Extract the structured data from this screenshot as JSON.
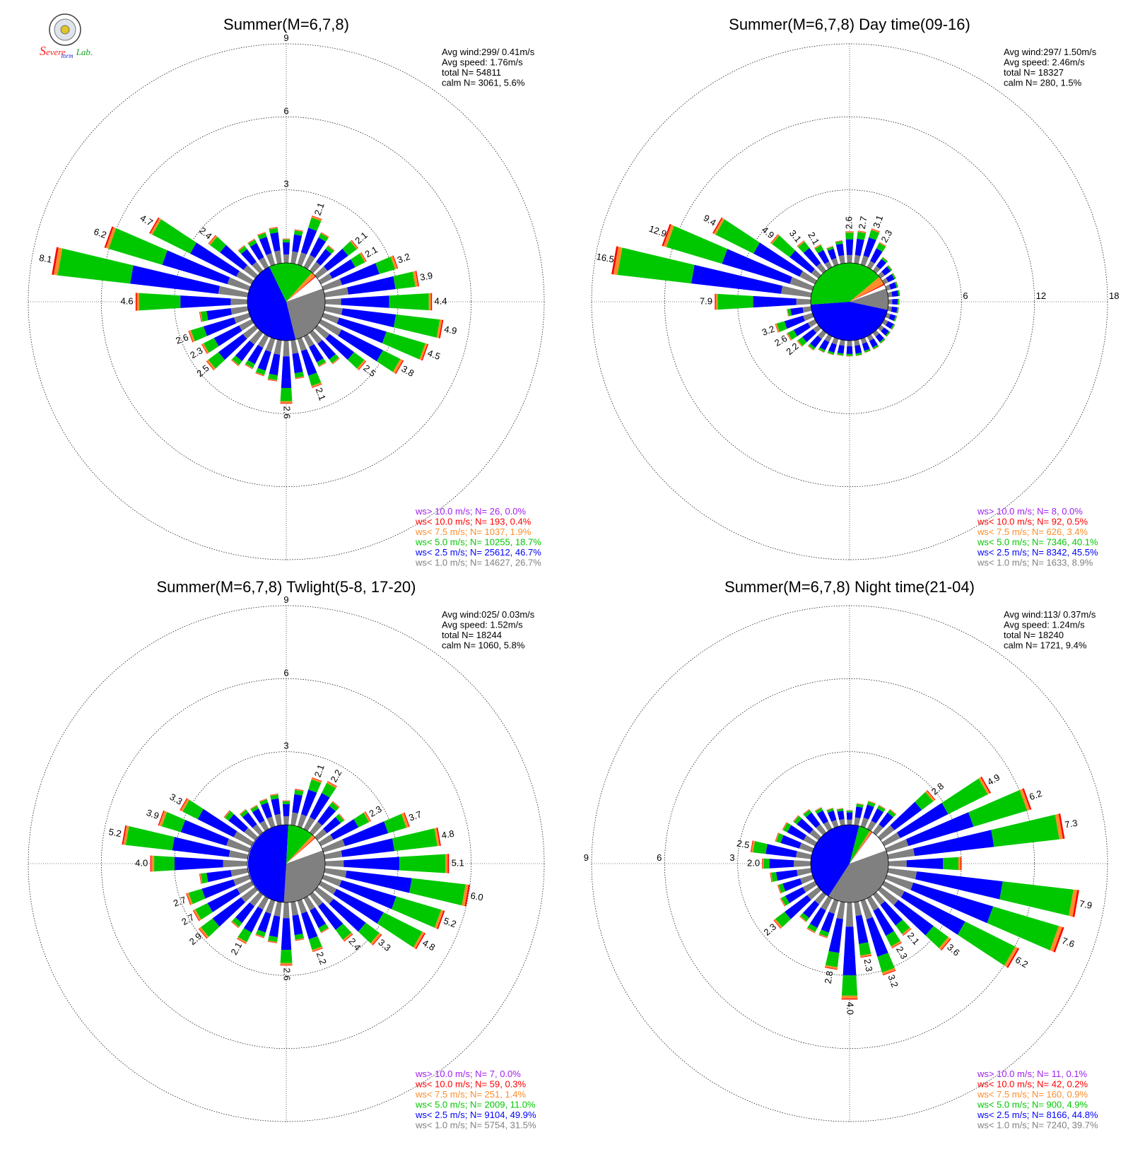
{
  "logo": {
    "text_parts": [
      {
        "text": "S",
        "color": "#ff2020"
      },
      {
        "text": "evere",
        "color": "#ff2020"
      },
      {
        "text": "torm",
        "color": "#1a2bd6"
      },
      {
        "text": "Lab.",
        "color": "#14a31e"
      }
    ]
  },
  "colors": {
    "ws_gt_10": "#a020f0",
    "ws_lt_10": "#ff0000",
    "ws_lt_7_5": "#ff8c2a",
    "ws_lt_5": "#00c800",
    "ws_lt_2_5": "#0000ff",
    "ws_lt_1": "#808080"
  },
  "chart_data": [
    {
      "type": "wind-rose",
      "title": "Summer(M=6,7,8)",
      "ring_labels": [
        "3",
        "6",
        "9"
      ],
      "ring_label_position": "north",
      "avg_wind": "Avg wind:299/ 0.41m/s",
      "avg_speed": "Avg speed: 1.76m/s",
      "total": "total N=      54811",
      "calm": "calm N=   3061,   5.6%",
      "legend": [
        "ws> 10.0 m/s; N=    26,  0.0%",
        "ws< 10.0 m/s; N=   193,  0.4%",
        "ws<  7.5 m/s; N=  1037,  1.9%",
        "ws<  5.0 m/s; N= 10255, 18.7%",
        "ws<  2.5 m/s; N= 25612, 46.7%",
        "ws<  1.0 m/s; N= 14627, 26.7%"
      ],
      "calm_pie": [
        0.267,
        0.467,
        0.187,
        0.019,
        0.004,
        0.0
      ],
      "bars": [
        {
          "dir": 0,
          "total": 1.0
        },
        {
          "dir": 10,
          "total": 1.4
        },
        {
          "dir": 20,
          "total": 2.1,
          "label": "2.1"
        },
        {
          "dir": 30,
          "total": 1.6
        },
        {
          "dir": 40,
          "total": 1.3
        },
        {
          "dir": 50,
          "total": 2.1,
          "label": "2.1"
        },
        {
          "dir": 60,
          "total": 2.1,
          "label": "2.1"
        },
        {
          "dir": 70,
          "total": 3.2,
          "label": "3.2"
        },
        {
          "dir": 80,
          "total": 3.9,
          "label": "3.9"
        },
        {
          "dir": 90,
          "total": 4.4,
          "label": "4.4"
        },
        {
          "dir": 100,
          "total": 4.9,
          "label": "4.9"
        },
        {
          "dir": 110,
          "total": 4.5,
          "label": "4.5"
        },
        {
          "dir": 120,
          "total": 3.8,
          "label": "3.8"
        },
        {
          "dir": 130,
          "total": 2.5,
          "label": "2.5"
        },
        {
          "dir": 140,
          "total": 1.6
        },
        {
          "dir": 150,
          "total": 1.4
        },
        {
          "dir": 160,
          "total": 2.1,
          "label": "2.1"
        },
        {
          "dir": 170,
          "total": 1.6
        },
        {
          "dir": 180,
          "total": 2.6,
          "label": "2.6"
        },
        {
          "dir": 190,
          "total": 1.7
        },
        {
          "dir": 200,
          "total": 1.6
        },
        {
          "dir": 210,
          "total": 1.5
        },
        {
          "dir": 220,
          "total": 1.7
        },
        {
          "dir": 230,
          "total": 2.5,
          "label": "2.5"
        },
        {
          "dir": 240,
          "total": 2.3,
          "label": "2.3"
        },
        {
          "dir": 250,
          "total": 2.6,
          "label": "2.6"
        },
        {
          "dir": 260,
          "total": 2.0
        },
        {
          "dir": 270,
          "total": 4.6,
          "label": "4.6"
        },
        {
          "dir": 280,
          "total": 8.1,
          "label": "8.1"
        },
        {
          "dir": 290,
          "total": 6.2,
          "label": "6.2"
        },
        {
          "dir": 300,
          "total": 4.7,
          "label": "4.7"
        },
        {
          "dir": 310,
          "total": 2.4,
          "label": "2.4"
        },
        {
          "dir": 320,
          "total": 1.3
        },
        {
          "dir": 330,
          "total": 1.3
        },
        {
          "dir": 340,
          "total": 1.4
        },
        {
          "dir": 350,
          "total": 1.5
        }
      ]
    },
    {
      "type": "wind-rose",
      "title": "Summer(M=6,7,8) Day time(09-16)",
      "ring_labels": [
        "6",
        "12",
        "18"
      ],
      "ring_label_position": "east",
      "avg_wind": "Avg wind:297/ 1.50m/s",
      "avg_speed": "Avg speed: 2.46m/s",
      "total": "total N=      18327",
      "calm": "calm N=    280,   1.5%",
      "legend": [
        "ws> 10.0 m/s; N=     8,  0.0%",
        "ws< 10.0 m/s; N=    92,  0.5%",
        "ws<  7.5 m/s; N=   626,  3.4%",
        "ws<  5.0 m/s; N=  7346, 40.1%",
        "ws<  2.5 m/s; N=  8342, 45.5%",
        "ws<  1.0 m/s; N=  1633,  8.9%"
      ],
      "calm_pie": [
        0.089,
        0.455,
        0.401,
        0.034,
        0.005,
        0.0
      ],
      "bars": [
        {
          "dir": 0,
          "total": 2.6,
          "label": "2.6"
        },
        {
          "dir": 10,
          "total": 2.7,
          "label": "2.7"
        },
        {
          "dir": 20,
          "total": 3.1,
          "label": "3.1"
        },
        {
          "dir": 30,
          "total": 2.3,
          "label": "2.3"
        },
        {
          "dir": 40,
          "total": 1.4
        },
        {
          "dir": 50,
          "total": 1.2
        },
        {
          "dir": 60,
          "total": 1.1
        },
        {
          "dir": 70,
          "total": 1.0
        },
        {
          "dir": 80,
          "total": 1.0
        },
        {
          "dir": 90,
          "total": 0.9
        },
        {
          "dir": 100,
          "total": 0.9
        },
        {
          "dir": 110,
          "total": 0.9
        },
        {
          "dir": 120,
          "total": 1.0
        },
        {
          "dir": 130,
          "total": 1.0
        },
        {
          "dir": 140,
          "total": 1.1
        },
        {
          "dir": 150,
          "total": 1.2
        },
        {
          "dir": 160,
          "total": 1.2
        },
        {
          "dir": 170,
          "total": 1.3
        },
        {
          "dir": 180,
          "total": 1.3
        },
        {
          "dir": 190,
          "total": 1.3
        },
        {
          "dir": 200,
          "total": 1.4
        },
        {
          "dir": 210,
          "total": 1.5
        },
        {
          "dir": 220,
          "total": 1.8
        },
        {
          "dir": 230,
          "total": 2.2,
          "label": "2.2"
        },
        {
          "dir": 240,
          "total": 2.6,
          "label": "2.6"
        },
        {
          "dir": 250,
          "total": 3.2,
          "label": "3.2"
        },
        {
          "dir": 260,
          "total": 2.0
        },
        {
          "dir": 270,
          "total": 7.9,
          "label": "7.9"
        },
        {
          "dir": 280,
          "total": 16.5,
          "label": "16.5"
        },
        {
          "dir": 290,
          "total": 12.9,
          "label": "12.9"
        },
        {
          "dir": 300,
          "total": 9.4,
          "label": "9.4"
        },
        {
          "dir": 310,
          "total": 4.9,
          "label": "4.9"
        },
        {
          "dir": 320,
          "total": 3.1,
          "label": "3.1"
        },
        {
          "dir": 330,
          "total": 2.1,
          "label": "2.1"
        },
        {
          "dir": 340,
          "total": 1.6
        },
        {
          "dir": 350,
          "total": 1.9
        }
      ]
    },
    {
      "type": "wind-rose",
      "title": "Summer(M=6,7,8) Twlight(5-8, 17-20)",
      "ring_labels": [
        "3",
        "6",
        "9"
      ],
      "ring_label_position": "north",
      "avg_wind": "Avg wind:025/ 0.03m/s",
      "avg_speed": "Avg speed: 1.52m/s",
      "total": "total N=      18244",
      "calm": "calm N=   1060,   5.8%",
      "legend": [
        "ws> 10.0 m/s; N=     7,  0.0%",
        "ws< 10.0 m/s; N=    59,  0.3%",
        "ws<  7.5 m/s; N=   251,  1.4%",
        "ws<  5.0 m/s; N=  2009, 11.0%",
        "ws<  2.5 m/s; N=  9104, 49.9%",
        "ws<  1.0 m/s; N=  5754, 31.5%"
      ],
      "calm_pie": [
        0.315,
        0.499,
        0.11,
        0.014,
        0.003,
        0.0
      ],
      "bars": [
        {
          "dir": 0,
          "total": 1.0
        },
        {
          "dir": 10,
          "total": 1.5
        },
        {
          "dir": 20,
          "total": 2.1,
          "label": "2.1"
        },
        {
          "dir": 30,
          "total": 2.2,
          "label": "2.2"
        },
        {
          "dir": 40,
          "total": 1.6
        },
        {
          "dir": 50,
          "total": 1.4
        },
        {
          "dir": 60,
          "total": 2.3,
          "label": "2.3"
        },
        {
          "dir": 70,
          "total": 3.7,
          "label": "3.7"
        },
        {
          "dir": 80,
          "total": 4.8,
          "label": "4.8"
        },
        {
          "dir": 90,
          "total": 5.1,
          "label": "5.1"
        },
        {
          "dir": 100,
          "total": 6.0,
          "label": "6.0"
        },
        {
          "dir": 110,
          "total": 5.2,
          "label": "5.2"
        },
        {
          "dir": 120,
          "total": 4.8,
          "label": "4.8"
        },
        {
          "dir": 130,
          "total": 3.3,
          "label": "3.3"
        },
        {
          "dir": 140,
          "total": 2.4,
          "label": "2.4"
        },
        {
          "dir": 150,
          "total": 1.6
        },
        {
          "dir": 160,
          "total": 2.2,
          "label": "2.2"
        },
        {
          "dir": 170,
          "total": 1.6
        },
        {
          "dir": 180,
          "total": 2.6,
          "label": "2.6"
        },
        {
          "dir": 190,
          "total": 1.7
        },
        {
          "dir": 200,
          "total": 1.6
        },
        {
          "dir": 210,
          "total": 2.1,
          "label": "2.1"
        },
        {
          "dir": 220,
          "total": 1.7
        },
        {
          "dir": 230,
          "total": 2.9,
          "label": "2.9"
        },
        {
          "dir": 240,
          "total": 2.7,
          "label": "2.7"
        },
        {
          "dir": 250,
          "total": 2.7,
          "label": "2.7"
        },
        {
          "dir": 260,
          "total": 2.0
        },
        {
          "dir": 270,
          "total": 4.0,
          "label": "4.0"
        },
        {
          "dir": 280,
          "total": 5.2,
          "label": "5.2"
        },
        {
          "dir": 290,
          "total": 3.9,
          "label": "3.9"
        },
        {
          "dir": 300,
          "total": 3.3,
          "label": "3.3"
        },
        {
          "dir": 310,
          "total": 1.6
        },
        {
          "dir": 320,
          "total": 1.2
        },
        {
          "dir": 330,
          "total": 1.1
        },
        {
          "dir": 340,
          "total": 1.2
        },
        {
          "dir": 350,
          "total": 1.3
        }
      ]
    },
    {
      "type": "wind-rose",
      "title": "Summer(M=6,7,8) Night time(21-04)",
      "ring_labels": [
        "3",
        "6",
        "9"
      ],
      "ring_label_position": "west",
      "avg_wind": "Avg wind:113/ 0.37m/s",
      "avg_speed": "Avg speed: 1.24m/s",
      "total": "total N=      18240",
      "calm": "calm N=   1721,   9.4%",
      "legend": [
        "ws> 10.0 m/s; N=    11,  0.1%",
        "ws< 10.0 m/s; N=    42,  0.2%",
        "ws<  7.5 m/s; N=   160,  0.9%",
        "ws<  5.0 m/s; N=   900,  4.9%",
        "ws<  2.5 m/s; N=  8166, 44.8%",
        "ws<  1.0 m/s; N=  7240, 39.7%"
      ],
      "calm_pie": [
        0.397,
        0.448,
        0.049,
        0.009,
        0.002,
        0.001
      ],
      "bars": [
        {
          "dir": 0,
          "total": 0.6
        },
        {
          "dir": 10,
          "total": 0.9
        },
        {
          "dir": 20,
          "total": 1.1
        },
        {
          "dir": 30,
          "total": 1.1
        },
        {
          "dir": 40,
          "total": 1.2
        },
        {
          "dir": 50,
          "total": 2.8,
          "label": "2.8"
        },
        {
          "dir": 60,
          "total": 4.9,
          "label": "4.9"
        },
        {
          "dir": 70,
          "total": 6.2,
          "label": "6.2"
        },
        {
          "dir": 80,
          "total": 7.3,
          "label": "7.3"
        },
        {
          "dir": 90,
          "total": 3.0
        },
        {
          "dir": 100,
          "total": 7.9,
          "label": "7.9"
        },
        {
          "dir": 110,
          "total": 7.6,
          "label": "7.6"
        },
        {
          "dir": 120,
          "total": 6.2,
          "label": "6.2"
        },
        {
          "dir": 130,
          "total": 3.6,
          "label": "3.6"
        },
        {
          "dir": 140,
          "total": 2.1,
          "label": "2.1"
        },
        {
          "dir": 150,
          "total": 2.3,
          "label": "2.3"
        },
        {
          "dir": 160,
          "total": 3.2,
          "label": "3.2"
        },
        {
          "dir": 170,
          "total": 2.3,
          "label": "2.3"
        },
        {
          "dir": 180,
          "total": 4.0,
          "label": "4.0"
        },
        {
          "dir": 190,
          "total": 2.8,
          "label": "2.8"
        },
        {
          "dir": 200,
          "total": 1.6
        },
        {
          "dir": 210,
          "total": 1.6
        },
        {
          "dir": 220,
          "total": 1.4
        },
        {
          "dir": 230,
          "total": 2.3,
          "label": "2.3"
        },
        {
          "dir": 240,
          "total": 1.6
        },
        {
          "dir": 250,
          "total": 1.5
        },
        {
          "dir": 260,
          "total": 1.7
        },
        {
          "dir": 270,
          "total": 2.0,
          "label": "2.0"
        },
        {
          "dir": 280,
          "total": 2.5,
          "label": "2.5"
        },
        {
          "dir": 290,
          "total": 1.6
        },
        {
          "dir": 300,
          "total": 1.5
        },
        {
          "dir": 310,
          "total": 1.3
        },
        {
          "dir": 320,
          "total": 1.2
        },
        {
          "dir": 330,
          "total": 1.0
        },
        {
          "dir": 340,
          "total": 0.8
        },
        {
          "dir": 350,
          "total": 0.7
        }
      ]
    }
  ]
}
